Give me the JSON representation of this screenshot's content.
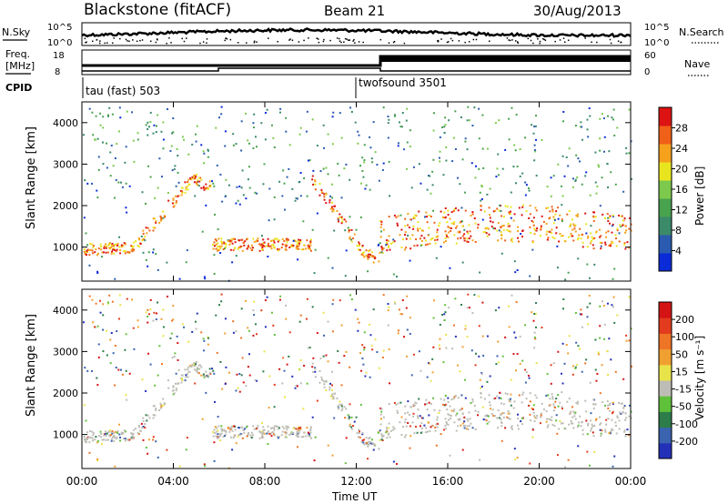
{
  "header": {
    "title": "Blackstone (fitACF)",
    "beam": "Beam 21",
    "date": "30/Aug/2013"
  },
  "labels": {
    "nsky": "N.Sky",
    "nsearch": "N.Search",
    "freq_line1": "Freq.",
    "freq_line2": "[MHz]",
    "nave": "Nave",
    "cpid": "CPID"
  },
  "ticks": {
    "noise": [
      "10^5",
      "10^0"
    ],
    "freq": [
      "18",
      "8"
    ],
    "nave": [
      "60",
      "0"
    ]
  },
  "cpid": [
    {
      "name": "tau (fast) 503",
      "start_hour": 0
    },
    {
      "name": "twofsound 3501",
      "start_hour": 12
    }
  ],
  "chart_data": [
    {
      "type": "heatmap",
      "panel": "power",
      "ylabel": "Slant Range [km]",
      "yticks": [
        1000,
        2000,
        3000,
        4000
      ],
      "ylim": [
        180,
        4500
      ],
      "xlim": [
        0,
        24
      ],
      "colorbar": {
        "label": "Power [dB]",
        "ticks": [
          "28",
          "24",
          "20",
          "16",
          "12",
          "8",
          "4"
        ],
        "colors": [
          "#0b2bd9",
          "#2a5bb0",
          "#3b8a6a",
          "#49a24e",
          "#7cc94d",
          "#e8e51e",
          "#f6a11c",
          "#f06018",
          "#dd1313"
        ]
      }
    },
    {
      "type": "heatmap",
      "panel": "velocity",
      "ylabel": "Slant Range [km]",
      "yticks": [
        1000,
        2000,
        3000,
        4000
      ],
      "ylim": [
        180,
        4500
      ],
      "xlim": [
        0,
        24
      ],
      "xlabel": "Time UT",
      "xticks": [
        "00:00",
        "04:00",
        "08:00",
        "12:00",
        "16:00",
        "20:00",
        "00:00"
      ],
      "colorbar": {
        "label": "Velocity [m s⁻¹]",
        "ticks": [
          "200",
          "100",
          "50",
          "15",
          "-15",
          "-50",
          "-100",
          "-200"
        ],
        "colors": [
          "#2330b8",
          "#3a63b0",
          "#2d7d4a",
          "#5fc03a",
          "#bdbdb5",
          "#e9e34a",
          "#f0a030",
          "#ee7426",
          "#e23b1e",
          "#d41414"
        ]
      }
    }
  ]
}
